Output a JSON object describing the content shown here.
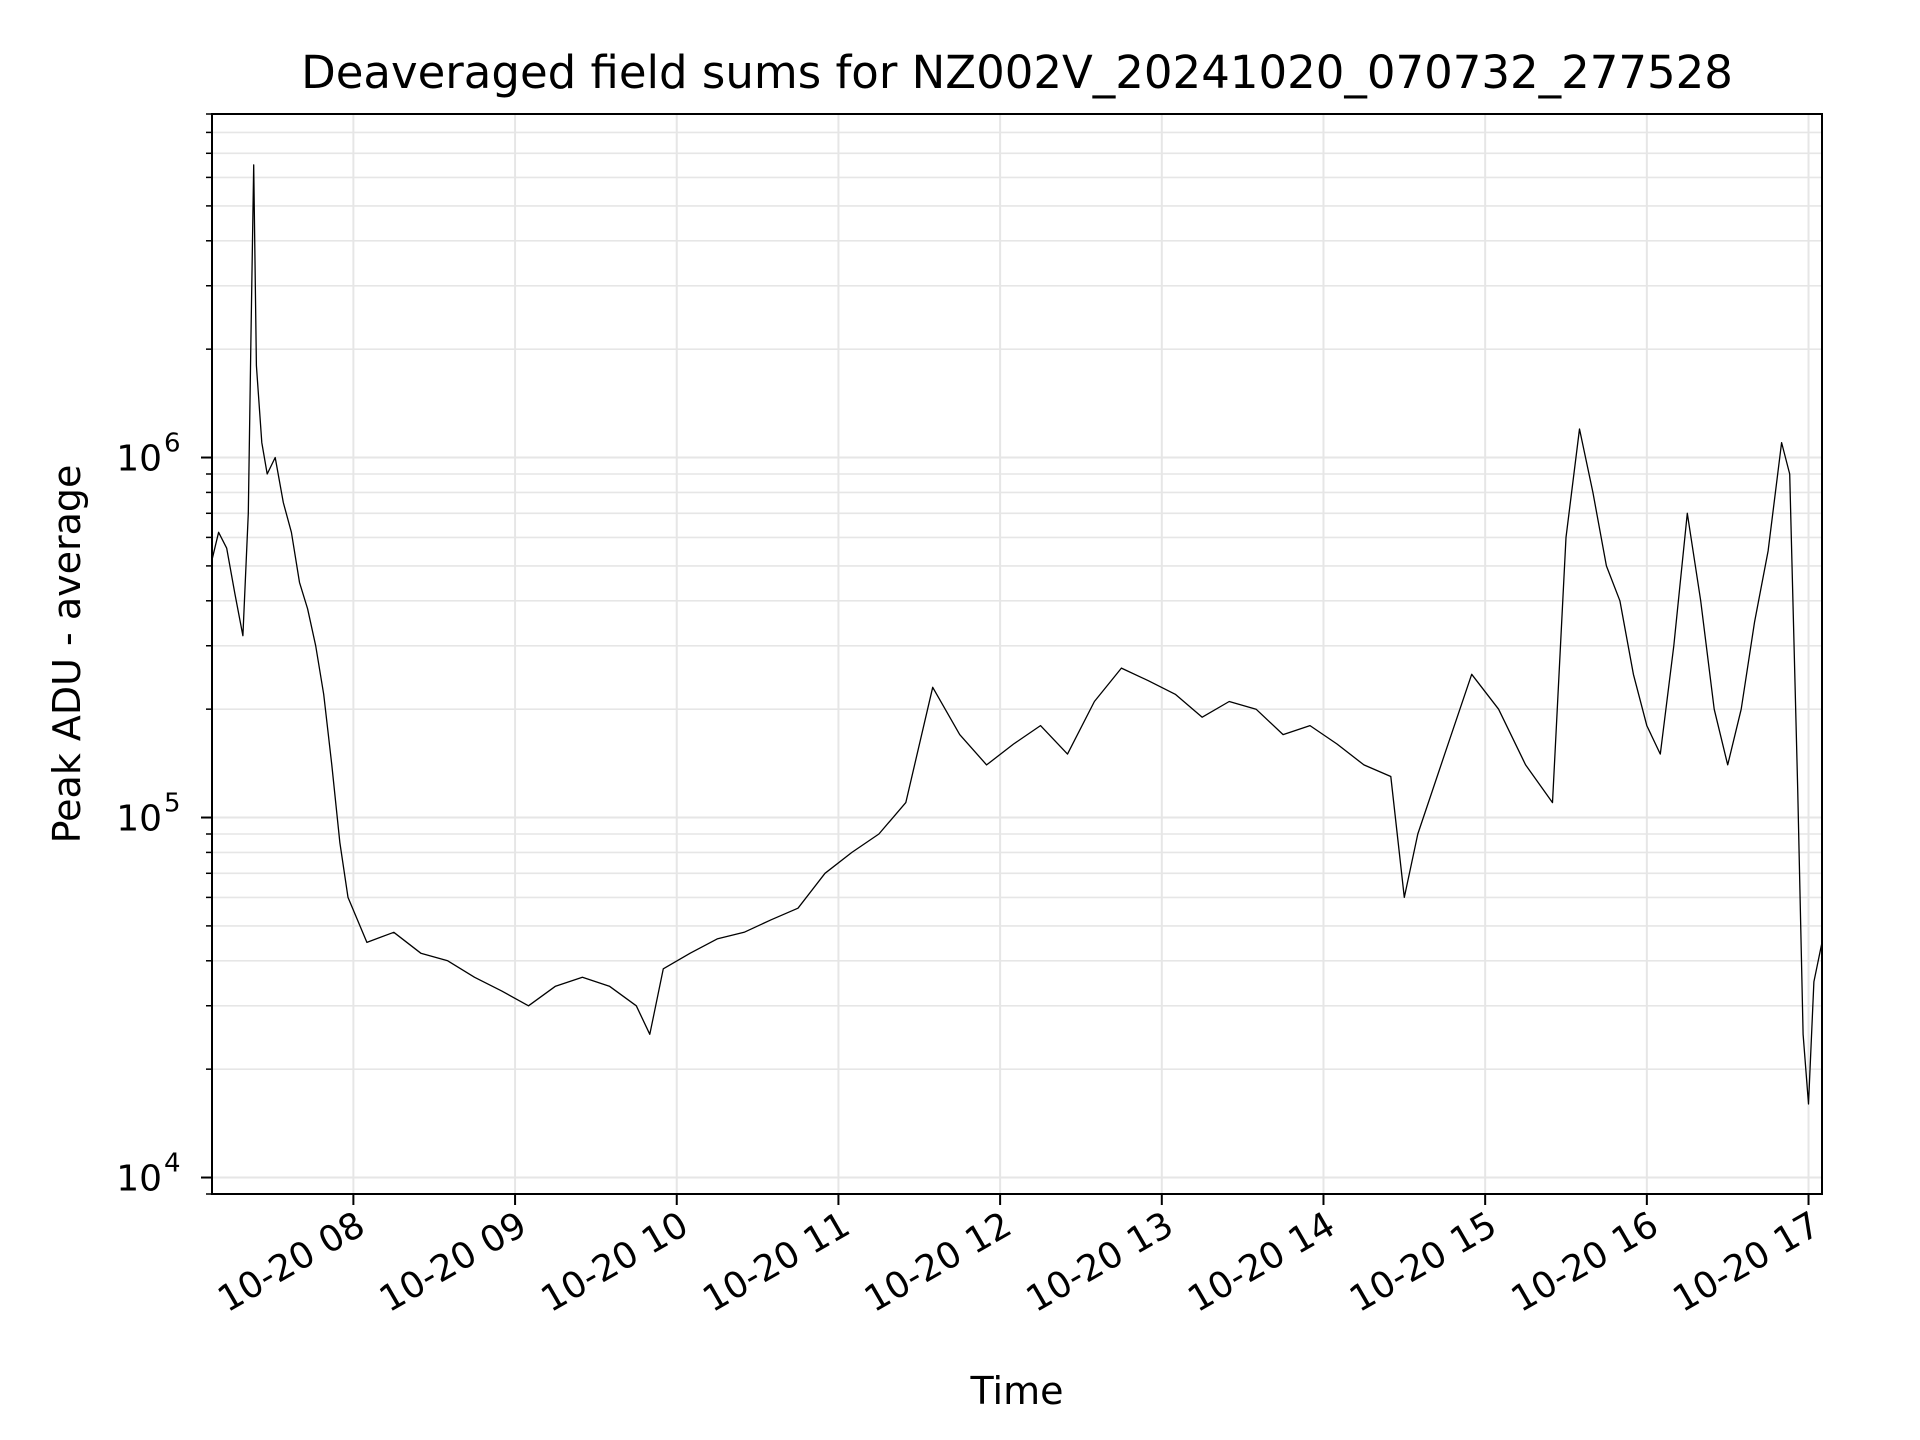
{
  "chart_data": {
    "type": "line",
    "title": "Deaveraged field sums for NZ002V_20241020_070732_277528",
    "xlabel": "Time",
    "ylabel": "Peak ADU - average",
    "yscale": "log",
    "ylim": [
      9000,
      9000000
    ],
    "xlim": [
      "2024-10-20 07:07:32",
      "2024-10-20 17:05:00"
    ],
    "grid": true,
    "line_color": "#000000",
    "grid_color": "#e6e6e6",
    "x_ticks": [
      {
        "value": "2024-10-20 08:00",
        "label": "10-20 08"
      },
      {
        "value": "2024-10-20 09:00",
        "label": "10-20 09"
      },
      {
        "value": "2024-10-20 10:00",
        "label": "10-20 10"
      },
      {
        "value": "2024-10-20 11:00",
        "label": "10-20 11"
      },
      {
        "value": "2024-10-20 12:00",
        "label": "10-20 12"
      },
      {
        "value": "2024-10-20 13:00",
        "label": "10-20 13"
      },
      {
        "value": "2024-10-20 14:00",
        "label": "10-20 14"
      },
      {
        "value": "2024-10-20 15:00",
        "label": "10-20 15"
      },
      {
        "value": "2024-10-20 16:00",
        "label": "10-20 16"
      },
      {
        "value": "2024-10-20 17:00",
        "label": "10-20 17"
      }
    ],
    "y_ticks": [
      {
        "value": 10000,
        "base": "10",
        "exp": "4"
      },
      {
        "value": 100000,
        "base": "10",
        "exp": "5"
      },
      {
        "value": 1000000,
        "base": "10",
        "exp": "6"
      }
    ],
    "series": [
      {
        "points": [
          [
            "2024-10-20 07:07:32",
            520000
          ],
          [
            "2024-10-20 07:10",
            620000
          ],
          [
            "2024-10-20 07:13",
            560000
          ],
          [
            "2024-10-20 07:16",
            420000
          ],
          [
            "2024-10-20 07:19",
            320000
          ],
          [
            "2024-10-20 07:21",
            700000
          ],
          [
            "2024-10-20 07:22",
            2200000
          ],
          [
            "2024-10-20 07:23",
            6500000
          ],
          [
            "2024-10-20 07:24",
            1800000
          ],
          [
            "2024-10-20 07:26",
            1100000
          ],
          [
            "2024-10-20 07:28",
            900000
          ],
          [
            "2024-10-20 07:31",
            1000000
          ],
          [
            "2024-10-20 07:34",
            750000
          ],
          [
            "2024-10-20 07:37",
            620000
          ],
          [
            "2024-10-20 07:40",
            450000
          ],
          [
            "2024-10-20 07:43",
            380000
          ],
          [
            "2024-10-20 07:46",
            300000
          ],
          [
            "2024-10-20 07:49",
            220000
          ],
          [
            "2024-10-20 07:52",
            140000
          ],
          [
            "2024-10-20 07:55",
            85000
          ],
          [
            "2024-10-20 07:58",
            60000
          ],
          [
            "2024-10-20 08:05",
            45000
          ],
          [
            "2024-10-20 08:15",
            48000
          ],
          [
            "2024-10-20 08:25",
            42000
          ],
          [
            "2024-10-20 08:35",
            40000
          ],
          [
            "2024-10-20 08:45",
            36000
          ],
          [
            "2024-10-20 08:55",
            33000
          ],
          [
            "2024-10-20 09:05",
            30000
          ],
          [
            "2024-10-20 09:15",
            34000
          ],
          [
            "2024-10-20 09:25",
            36000
          ],
          [
            "2024-10-20 09:35",
            34000
          ],
          [
            "2024-10-20 09:45",
            30000
          ],
          [
            "2024-10-20 09:50",
            25000
          ],
          [
            "2024-10-20 09:55",
            38000
          ],
          [
            "2024-10-20 10:05",
            42000
          ],
          [
            "2024-10-20 10:15",
            46000
          ],
          [
            "2024-10-20 10:25",
            48000
          ],
          [
            "2024-10-20 10:35",
            52000
          ],
          [
            "2024-10-20 10:45",
            56000
          ],
          [
            "2024-10-20 10:55",
            70000
          ],
          [
            "2024-10-20 11:05",
            80000
          ],
          [
            "2024-10-20 11:15",
            90000
          ],
          [
            "2024-10-20 11:25",
            110000
          ],
          [
            "2024-10-20 11:35",
            230000
          ],
          [
            "2024-10-20 11:45",
            170000
          ],
          [
            "2024-10-20 11:55",
            140000
          ],
          [
            "2024-10-20 12:05",
            160000
          ],
          [
            "2024-10-20 12:15",
            180000
          ],
          [
            "2024-10-20 12:25",
            150000
          ],
          [
            "2024-10-20 12:35",
            210000
          ],
          [
            "2024-10-20 12:45",
            260000
          ],
          [
            "2024-10-20 12:55",
            240000
          ],
          [
            "2024-10-20 13:05",
            220000
          ],
          [
            "2024-10-20 13:15",
            190000
          ],
          [
            "2024-10-20 13:25",
            210000
          ],
          [
            "2024-10-20 13:35",
            200000
          ],
          [
            "2024-10-20 13:45",
            170000
          ],
          [
            "2024-10-20 13:55",
            180000
          ],
          [
            "2024-10-20 14:05",
            160000
          ],
          [
            "2024-10-20 14:15",
            140000
          ],
          [
            "2024-10-20 14:25",
            130000
          ],
          [
            "2024-10-20 14:30",
            60000
          ],
          [
            "2024-10-20 14:35",
            90000
          ],
          [
            "2024-10-20 14:45",
            150000
          ],
          [
            "2024-10-20 14:55",
            250000
          ],
          [
            "2024-10-20 15:05",
            200000
          ],
          [
            "2024-10-20 15:15",
            140000
          ],
          [
            "2024-10-20 15:25",
            110000
          ],
          [
            "2024-10-20 15:30",
            600000
          ],
          [
            "2024-10-20 15:35",
            1200000
          ],
          [
            "2024-10-20 15:40",
            800000
          ],
          [
            "2024-10-20 15:45",
            500000
          ],
          [
            "2024-10-20 15:50",
            400000
          ],
          [
            "2024-10-20 15:55",
            250000
          ],
          [
            "2024-10-20 16:00",
            180000
          ],
          [
            "2024-10-20 16:05",
            150000
          ],
          [
            "2024-10-20 16:10",
            300000
          ],
          [
            "2024-10-20 16:15",
            700000
          ],
          [
            "2024-10-20 16:20",
            400000
          ],
          [
            "2024-10-20 16:25",
            200000
          ],
          [
            "2024-10-20 16:30",
            140000
          ],
          [
            "2024-10-20 16:35",
            200000
          ],
          [
            "2024-10-20 16:40",
            350000
          ],
          [
            "2024-10-20 16:45",
            550000
          ],
          [
            "2024-10-20 16:50",
            1100000
          ],
          [
            "2024-10-20 16:53",
            900000
          ],
          [
            "2024-10-20 16:56",
            120000
          ],
          [
            "2024-10-20 16:58",
            25000
          ],
          [
            "2024-10-20 17:00",
            16000
          ],
          [
            "2024-10-20 17:02",
            35000
          ],
          [
            "2024-10-20 17:05",
            45000
          ]
        ]
      }
    ]
  }
}
